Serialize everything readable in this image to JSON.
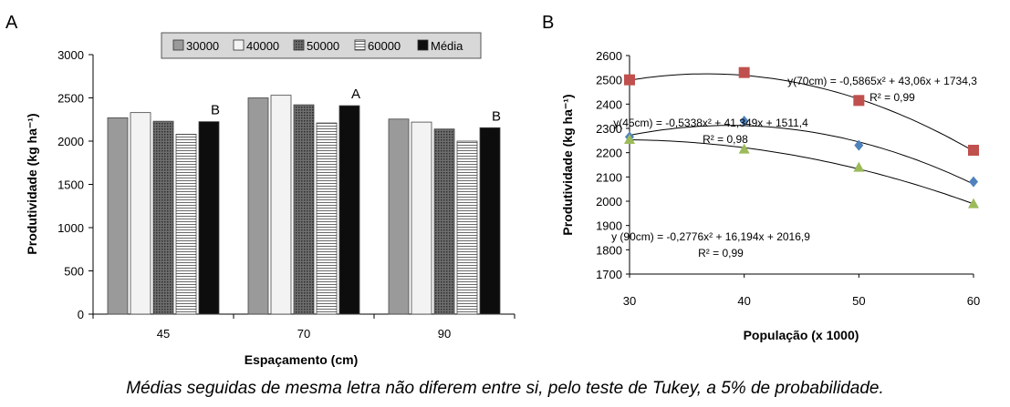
{
  "panel_labels": {
    "a": "A",
    "b": "B"
  },
  "caption": "Médias seguidas de mesma letra não diferem entre si, pelo teste de Tukey, a 5% de probabilidade.",
  "chart_data": [
    {
      "type": "bar",
      "panel": "A",
      "categories": [
        "45",
        "70",
        "90"
      ],
      "series": [
        {
          "name": "30000",
          "values": [
            2270,
            2500,
            2255
          ]
        },
        {
          "name": "40000",
          "values": [
            2330,
            2530,
            2220
          ]
        },
        {
          "name": "50000",
          "values": [
            2230,
            2420,
            2140
          ]
        },
        {
          "name": "60000",
          "values": [
            2080,
            2210,
            2000
          ]
        },
        {
          "name": "Média",
          "values": [
            2225,
            2410,
            2155
          ]
        }
      ],
      "letters": [
        "B",
        "A",
        "B"
      ],
      "xlabel": "Espaçamento (cm)",
      "ylabel": "Produtividade (kg ha⁻¹)",
      "ylim": [
        0,
        3000
      ],
      "yticks": [
        "0",
        "500",
        "1000",
        "1500",
        "2000",
        "2500",
        "3000"
      ],
      "legend_position": "top",
      "grid": false
    },
    {
      "type": "scatter",
      "panel": "B",
      "x": [
        30,
        40,
        50,
        60
      ],
      "xticks": [
        "30",
        "40",
        "50",
        "60"
      ],
      "yticks": [
        "1700",
        "1800",
        "1900",
        "2000",
        "2100",
        "2200",
        "2300",
        "2400",
        "2500",
        "2600"
      ],
      "xlim": [
        30,
        60
      ],
      "ylim": [
        1700,
        2600
      ],
      "xlabel": "População (x 1000)",
      "ylabel": "Produtividade (kg ha⁻¹)",
      "grid": false,
      "series": [
        {
          "values": [
            2500,
            2530,
            2415,
            2210
          ],
          "color": "#c0504d",
          "marker": "square",
          "fit": [
            -0.5865,
            43.06,
            1734.3
          ]
        },
        {
          "values": [
            2265,
            2330,
            2230,
            2080
          ],
          "color": "#4f81bd",
          "marker": "diamond",
          "fit": [
            -0.5338,
            41.349,
            1511.4
          ]
        },
        {
          "values": [
            2255,
            2215,
            2140,
            1990
          ],
          "color": "#9bbb59",
          "marker": "triangle",
          "fit": [
            -0.2776,
            16.194,
            2016.9
          ]
        }
      ],
      "equations": [
        {
          "eq": "y(70cm) = -0,5865x² + 43,06x + 1734,3",
          "r2": "R² = 0,99"
        },
        {
          "eq": "y(45cm) = -0,5338x² + 41,349x + 1511,4",
          "r2": "R² = 0,98"
        },
        {
          "eq": "y (90cm) = -0,2776x² + 16,194x + 2016,9",
          "r2": "R² = 0,99"
        }
      ]
    }
  ]
}
